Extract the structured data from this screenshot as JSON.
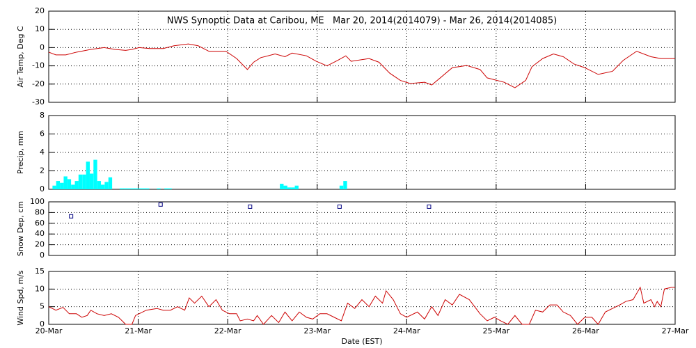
{
  "chart_data": [
    {
      "type": "line",
      "title": "NWS Synoptic Data at Caribou, ME   Mar 20, 2014(2014079) - Mar 26, 2014(2014085)",
      "ylabel": "Air Temp, Deg C",
      "color": "#cc0000",
      "x": [
        0,
        0.08,
        0.19,
        0.31,
        0.47,
        0.62,
        0.74,
        0.86,
        0.93,
        1.01,
        1.13,
        1.28,
        1.4,
        1.56,
        1.67,
        1.79,
        1.98,
        2.1,
        2.22,
        2.29,
        2.37,
        2.53,
        2.64,
        2.72,
        2.88,
        2.99,
        3.11,
        3.23,
        3.32,
        3.38,
        3.58,
        3.69,
        3.81,
        3.93,
        4.04,
        4.2,
        4.28,
        4.39,
        4.51,
        4.67,
        4.82,
        4.9,
        5.09,
        5.21,
        5.33,
        5.4,
        5.52,
        5.64,
        5.75,
        5.87,
        5.99,
        6.14,
        6.3,
        6.42,
        6.57,
        6.73,
        6.84,
        7.0
      ],
      "values": [
        -2.5,
        -4,
        -4,
        -2.5,
        -1,
        0,
        -1,
        -1.5,
        -1,
        0,
        -0.5,
        -0.5,
        1,
        2,
        1,
        -2,
        -2,
        -6,
        -12,
        -8,
        -5.5,
        -3.5,
        -5,
        -3,
        -4.5,
        -7.5,
        -10,
        -7,
        -4.5,
        -7.5,
        -6,
        -8,
        -14,
        -18,
        -19.7,
        -19,
        -20.5,
        -16,
        -11,
        -9.8,
        -12,
        -16.6,
        -19,
        -22,
        -18,
        -10.5,
        -6,
        -3.5,
        -5,
        -9,
        -11,
        -14.7,
        -13,
        -7,
        -2,
        -5,
        -6,
        -6
      ],
      "xlim": [
        0,
        7
      ],
      "xticks": [
        0,
        1,
        2,
        3,
        4,
        5,
        6,
        7
      ],
      "ylim": [
        -30,
        20
      ],
      "yticks": [
        -30,
        -20,
        -10,
        0,
        10,
        20
      ],
      "grid": true
    },
    {
      "type": "bar",
      "ylabel": "Precip, mm",
      "color": "#00ffff",
      "x": [
        0.042,
        0.083,
        0.125,
        0.167,
        0.208,
        0.25,
        0.292,
        0.333,
        0.375,
        0.417,
        0.458,
        0.5,
        0.542,
        0.583,
        0.625,
        0.667,
        0.792,
        0.833,
        0.875,
        0.917,
        0.958,
        1.0,
        1.042,
        1.083,
        1.208,
        1.292,
        1.333,
        2.583,
        2.625,
        2.667,
        2.708,
        2.75,
        3.25,
        3.292
      ],
      "values": [
        0.4,
        0.9,
        0.7,
        1.4,
        1.1,
        0.5,
        0.9,
        1.6,
        1.6,
        3.0,
        1.7,
        3.2,
        0.9,
        0.5,
        0.8,
        1.3,
        0.1,
        0.1,
        0.1,
        0.1,
        0.1,
        0.1,
        0.1,
        0.1,
        0.1,
        0.1,
        0.1,
        0.6,
        0.4,
        0.2,
        0.2,
        0.4,
        0.4,
        0.9
      ],
      "xlim": [
        0,
        7
      ],
      "xticks": [
        0,
        1,
        2,
        3,
        4,
        5,
        6,
        7
      ],
      "ylim": [
        0,
        8
      ],
      "yticks": [
        0,
        2,
        4,
        6,
        8
      ],
      "grid": true
    },
    {
      "type": "scatter",
      "ylabel": "Snow Dep, cm",
      "color": "#000080",
      "x": [
        0.25,
        1.25,
        2.25,
        3.25,
        4.25
      ],
      "values": [
        73,
        95,
        91,
        91,
        91
      ],
      "xlim": [
        0,
        7
      ],
      "xticks": [
        0,
        1,
        2,
        3,
        4,
        5,
        6,
        7
      ],
      "ylim": [
        0,
        100
      ],
      "yticks": [
        0,
        20,
        40,
        60,
        80,
        100
      ],
      "grid": true
    },
    {
      "type": "line",
      "ylabel": "Wind Spd, m/s",
      "xlabel": "Date (EST)",
      "color": "#cc0000",
      "x": [
        0,
        0.08,
        0.16,
        0.23,
        0.31,
        0.37,
        0.43,
        0.47,
        0.54,
        0.62,
        0.7,
        0.78,
        0.86,
        0.93,
        0.97,
        1.09,
        1.21,
        1.28,
        1.36,
        1.44,
        1.52,
        1.57,
        1.63,
        1.71,
        1.79,
        1.87,
        1.94,
        2.02,
        2.1,
        2.14,
        2.22,
        2.29,
        2.33,
        2.4,
        2.49,
        2.57,
        2.64,
        2.72,
        2.8,
        2.88,
        2.95,
        3.03,
        3.11,
        3.19,
        3.27,
        3.34,
        3.42,
        3.5,
        3.58,
        3.65,
        3.73,
        3.77,
        3.85,
        3.93,
        4.0,
        4.12,
        4.2,
        4.28,
        4.35,
        4.43,
        4.51,
        4.59,
        4.7,
        4.82,
        4.9,
        4.98,
        5.05,
        5.13,
        5.21,
        5.29,
        5.37,
        5.44,
        5.52,
        5.6,
        5.68,
        5.75,
        5.83,
        5.91,
        5.99,
        6.07,
        6.14,
        6.22,
        6.3,
        6.38,
        6.45,
        6.53,
        6.61,
        6.65,
        6.73,
        6.77,
        6.8,
        6.84,
        6.88,
        6.96,
        7.0
      ],
      "values": [
        5,
        4,
        4.8,
        3,
        3,
        2,
        2.5,
        4,
        3,
        2.5,
        3,
        2,
        0,
        0,
        2.5,
        4,
        4.5,
        4,
        4,
        5,
        4,
        7.5,
        6,
        8,
        5,
        7,
        4,
        3,
        3,
        1,
        1.5,
        1,
        2.5,
        0,
        2.5,
        0.5,
        3.5,
        1,
        3.5,
        2,
        1.5,
        3,
        3,
        2,
        1,
        6,
        4.5,
        7,
        5,
        8,
        6,
        9.5,
        7,
        3,
        2,
        3.5,
        1.5,
        5,
        2.5,
        7,
        5.5,
        8.5,
        7,
        3,
        1,
        2,
        1,
        0,
        2.5,
        0,
        0,
        4,
        3.5,
        5.5,
        5.5,
        3.5,
        2.5,
        0,
        2,
        2,
        0,
        3.5,
        4.5,
        5.5,
        6.5,
        7,
        10.5,
        6,
        7,
        5,
        6.5,
        5,
        10,
        10.5,
        10.5
      ],
      "xlim": [
        0,
        7
      ],
      "xticks": [
        {
          "value": 0,
          "label": "20-Mar"
        },
        {
          "value": 1,
          "label": "21-Mar"
        },
        {
          "value": 2,
          "label": "22-Mar"
        },
        {
          "value": 3,
          "label": "23-Mar"
        },
        {
          "value": 4,
          "label": "24-Mar"
        },
        {
          "value": 5,
          "label": "25-Mar"
        },
        {
          "value": 6,
          "label": "26-Mar"
        },
        {
          "value": 7,
          "label": "27-Mar"
        }
      ],
      "ylim": [
        0,
        15
      ],
      "yticks": [
        0,
        5,
        10,
        15
      ],
      "grid": true
    }
  ]
}
